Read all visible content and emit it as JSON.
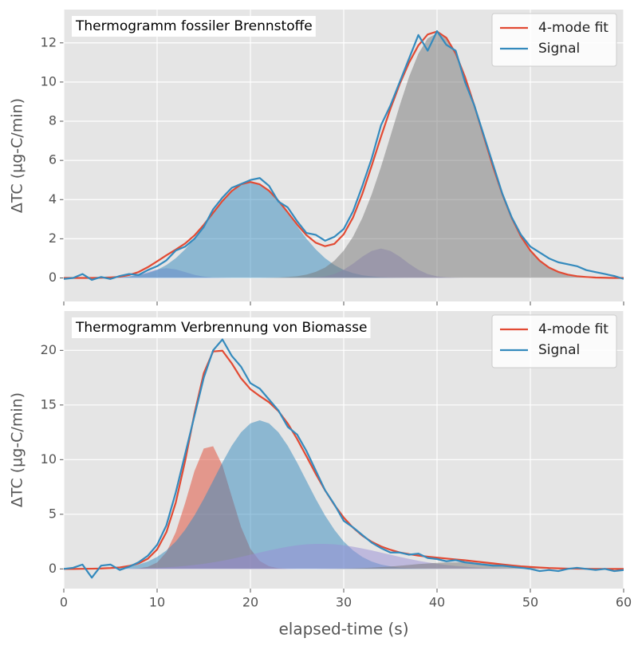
{
  "chart_data": [
    {
      "type": "line",
      "title": "Thermogramm fossiler Brennstoffe",
      "ylabel": "ΔTC (µg-C/min)",
      "xlim": [
        0,
        60
      ],
      "xticks": [
        0,
        10,
        20,
        30,
        40,
        50,
        60
      ],
      "xtick_labels": false,
      "ylim": [
        -1.2,
        13.7
      ],
      "yticks": [
        0,
        2,
        4,
        6,
        8,
        10,
        12
      ],
      "grid": true,
      "legend": "upper right",
      "x": [
        0,
        1,
        2,
        3,
        4,
        5,
        6,
        7,
        8,
        9,
        10,
        11,
        12,
        13,
        14,
        15,
        16,
        17,
        18,
        19,
        20,
        21,
        22,
        23,
        24,
        25,
        26,
        27,
        28,
        29,
        30,
        31,
        32,
        33,
        34,
        35,
        36,
        37,
        38,
        39,
        40,
        41,
        42,
        43,
        44,
        45,
        46,
        47,
        48,
        49,
        50,
        51,
        52,
        53,
        54,
        55,
        56,
        57,
        58,
        59,
        60
      ],
      "areas": [
        {
          "color": "#988ED5",
          "opacity": 0.5,
          "values": [
            0,
            0,
            0,
            0,
            0,
            0.01,
            0.02,
            0.07,
            0.16,
            0.3,
            0.44,
            0.5,
            0.44,
            0.3,
            0.16,
            0.07,
            0.02,
            0.01,
            0,
            0,
            0,
            0,
            0,
            0,
            0,
            0,
            0,
            0,
            0,
            0,
            0,
            0,
            0,
            0,
            0,
            0,
            0,
            0,
            0,
            0,
            0,
            0,
            0,
            0,
            0,
            0,
            0,
            0,
            0,
            0,
            0,
            0,
            0,
            0,
            0,
            0,
            0,
            0,
            0,
            0,
            0
          ]
        },
        {
          "color": "#348ABD",
          "opacity": 0.5,
          "values": [
            0,
            0,
            0,
            0,
            0.01,
            0.02,
            0.04,
            0.08,
            0.14,
            0.25,
            0.41,
            0.66,
            1.01,
            1.46,
            2.01,
            2.64,
            3.3,
            3.92,
            4.44,
            4.78,
            4.9,
            4.78,
            4.44,
            3.92,
            3.3,
            2.64,
            2.01,
            1.46,
            1.01,
            0.66,
            0.41,
            0.25,
            0.14,
            0.08,
            0.04,
            0.02,
            0.01,
            0,
            0,
            0,
            0,
            0,
            0,
            0,
            0,
            0,
            0,
            0,
            0,
            0,
            0,
            0,
            0,
            0,
            0,
            0,
            0,
            0,
            0,
            0,
            0
          ]
        },
        {
          "color": "#988ED5",
          "opacity": 0.5,
          "values": [
            0,
            0,
            0,
            0,
            0,
            0,
            0,
            0,
            0,
            0,
            0,
            0,
            0,
            0,
            0,
            0,
            0,
            0,
            0,
            0,
            0,
            0,
            0,
            0,
            0,
            0,
            0.01,
            0.03,
            0.08,
            0.2,
            0.42,
            0.73,
            1.09,
            1.38,
            1.5,
            1.38,
            1.09,
            0.73,
            0.42,
            0.2,
            0.08,
            0.03,
            0.01,
            0,
            0,
            0,
            0,
            0,
            0,
            0,
            0,
            0,
            0,
            0,
            0,
            0,
            0,
            0,
            0,
            0,
            0
          ]
        },
        {
          "color": "#777777",
          "opacity": 0.5,
          "values": [
            0,
            0,
            0,
            0,
            0,
            0,
            0,
            0,
            0,
            0,
            0,
            0,
            0,
            0,
            0,
            0,
            0,
            0,
            0,
            0,
            0,
            0,
            0.01,
            0.02,
            0.05,
            0.09,
            0.17,
            0.31,
            0.53,
            0.88,
            1.4,
            2.11,
            3.07,
            4.27,
            5.68,
            7.23,
            8.8,
            10.26,
            11.45,
            12.23,
            12.5,
            12.23,
            11.45,
            10.26,
            8.8,
            7.23,
            5.68,
            4.27,
            3.07,
            2.11,
            1.4,
            0.88,
            0.53,
            0.31,
            0.17,
            0.09,
            0.05,
            0.02,
            0.01,
            0,
            0
          ]
        }
      ],
      "series": [
        {
          "name": "4-mode fit",
          "color": "#E24A33",
          "values": [
            0,
            0,
            0,
            0,
            0.01,
            0.03,
            0.06,
            0.15,
            0.3,
            0.55,
            0.85,
            1.16,
            1.45,
            1.76,
            2.17,
            2.71,
            3.32,
            3.93,
            4.44,
            4.78,
            4.9,
            4.78,
            4.45,
            3.94,
            3.35,
            2.73,
            2.19,
            1.8,
            1.62,
            1.74,
            2.23,
            3.09,
            4.3,
            5.73,
            7.22,
            8.63,
            9.9,
            10.99,
            11.87,
            12.43,
            12.58,
            12.26,
            11.46,
            10.26,
            8.8,
            7.23,
            5.68,
            4.27,
            3.07,
            2.11,
            1.4,
            0.88,
            0.53,
            0.31,
            0.17,
            0.09,
            0.05,
            0.02,
            0.01,
            0,
            0
          ]
        },
        {
          "name": "Signal",
          "color": "#348ABD",
          "values": [
            -0.05,
            0,
            0.2,
            -0.1,
            0.05,
            -0.05,
            0.1,
            0.2,
            0.15,
            0.4,
            0.6,
            0.9,
            1.4,
            1.6,
            2,
            2.6,
            3.5,
            4.1,
            4.6,
            4.8,
            5,
            5.1,
            4.7,
            3.9,
            3.6,
            2.9,
            2.3,
            2.2,
            1.9,
            2.1,
            2.5,
            3.4,
            4.7,
            6.1,
            7.8,
            8.8,
            10,
            11.2,
            12.4,
            11.6,
            12.6,
            11.9,
            11.6,
            10,
            8.8,
            7.3,
            5.8,
            4.3,
            3.1,
            2.2,
            1.6,
            1.3,
            1,
            0.8,
            0.7,
            0.6,
            0.4,
            0.3,
            0.2,
            0.1,
            -0.05
          ]
        }
      ]
    },
    {
      "type": "line",
      "title": "Thermogramm Verbrennung von Biomasse",
      "ylabel": "ΔTC (µg-C/min)",
      "xlabel": "elapsed-time (s)",
      "xlim": [
        0,
        60
      ],
      "xticks": [
        0,
        10,
        20,
        30,
        40,
        50,
        60
      ],
      "ylim": [
        -1.8,
        23.6
      ],
      "yticks": [
        0,
        5,
        10,
        15,
        20
      ],
      "grid": true,
      "legend": "upper right",
      "x": [
        0,
        1,
        2,
        3,
        4,
        5,
        6,
        7,
        8,
        9,
        10,
        11,
        12,
        13,
        14,
        15,
        16,
        17,
        18,
        19,
        20,
        21,
        22,
        23,
        24,
        25,
        26,
        27,
        28,
        29,
        30,
        31,
        32,
        33,
        34,
        35,
        36,
        37,
        38,
        39,
        40,
        41,
        42,
        43,
        44,
        45,
        46,
        47,
        48,
        49,
        50,
        51,
        52,
        53,
        54,
        55,
        56,
        57,
        58,
        59,
        60
      ],
      "areas": [
        {
          "color": "#E24A33",
          "opacity": 0.5,
          "values": [
            0,
            0,
            0,
            0,
            0,
            0,
            0,
            0.01,
            0.05,
            0.19,
            0.59,
            1.54,
            3.36,
            6.02,
            8.95,
            11.02,
            11.23,
            9.48,
            6.62,
            3.83,
            1.83,
            0.73,
            0.24,
            0.06,
            0.01,
            0,
            0,
            0,
            0,
            0,
            0,
            0,
            0,
            0,
            0,
            0,
            0,
            0,
            0,
            0,
            0,
            0,
            0,
            0,
            0,
            0,
            0,
            0,
            0,
            0,
            0,
            0,
            0,
            0,
            0,
            0,
            0,
            0,
            0,
            0,
            0
          ]
        },
        {
          "color": "#348ABD",
          "opacity": 0.5,
          "values": [
            0,
            0,
            0.01,
            0.02,
            0.03,
            0.07,
            0.12,
            0.23,
            0.4,
            0.67,
            1.09,
            1.69,
            2.51,
            3.58,
            4.89,
            6.41,
            8.07,
            9.74,
            11.27,
            12.51,
            13.32,
            13.6,
            13.32,
            12.51,
            11.27,
            9.74,
            8.07,
            6.41,
            4.89,
            3.58,
            2.51,
            1.69,
            1.09,
            0.67,
            0.4,
            0.23,
            0.12,
            0.07,
            0.03,
            0.02,
            0.01,
            0,
            0,
            0,
            0,
            0,
            0,
            0,
            0,
            0,
            0,
            0,
            0,
            0,
            0,
            0,
            0,
            0,
            0,
            0,
            0
          ]
        },
        {
          "color": "#988ED5",
          "opacity": 0.5,
          "values": [
            0,
            0,
            0,
            0,
            0.01,
            0.01,
            0.02,
            0.03,
            0.05,
            0.07,
            0.1,
            0.14,
            0.2,
            0.27,
            0.36,
            0.47,
            0.6,
            0.75,
            0.92,
            1.1,
            1.3,
            1.49,
            1.69,
            1.87,
            2.03,
            2.16,
            2.25,
            2.29,
            2.29,
            2.25,
            2.16,
            2.03,
            1.87,
            1.69,
            1.49,
            1.3,
            1.1,
            0.92,
            0.75,
            0.6,
            0.47,
            0.36,
            0.27,
            0.2,
            0.14,
            0.1,
            0.07,
            0.05,
            0.03,
            0.02,
            0.01,
            0.01,
            0,
            0,
            0,
            0,
            0,
            0,
            0,
            0,
            0
          ]
        },
        {
          "color": "#777777",
          "opacity": 0.5,
          "values": [
            0,
            0,
            0,
            0,
            0,
            0,
            0,
            0,
            0,
            0,
            0,
            0,
            0,
            0,
            0,
            0,
            0,
            0,
            0,
            0,
            0,
            0,
            0,
            0,
            0,
            0,
            0,
            0,
            0.01,
            0.02,
            0.03,
            0.05,
            0.08,
            0.12,
            0.17,
            0.22,
            0.29,
            0.36,
            0.44,
            0.5,
            0.55,
            0.59,
            0.6,
            0.59,
            0.55,
            0.5,
            0.44,
            0.36,
            0.29,
            0.22,
            0.17,
            0.12,
            0.08,
            0.05,
            0.03,
            0.02,
            0.01,
            0,
            0,
            0,
            0
          ]
        }
      ],
      "series": [
        {
          "name": "4-mode fit",
          "color": "#E24A33",
          "values": [
            0,
            0,
            0.01,
            0.02,
            0.04,
            0.08,
            0.14,
            0.27,
            0.5,
            0.93,
            1.78,
            3.37,
            6.07,
            9.87,
            14.2,
            17.9,
            19.9,
            19.97,
            18.81,
            17.44,
            16.45,
            15.82,
            15.25,
            14.44,
            13.31,
            11.9,
            10.32,
            8.7,
            7.19,
            5.85,
            4.7,
            3.77,
            3.04,
            2.48,
            2.06,
            1.75,
            1.51,
            1.35,
            1.22,
            1.12,
            1.03,
            0.95,
            0.87,
            0.79,
            0.69,
            0.6,
            0.51,
            0.41,
            0.32,
            0.24,
            0.18,
            0.13,
            0.08,
            0.05,
            0.03,
            0.02,
            0.01,
            0,
            0,
            0,
            0
          ]
        },
        {
          "name": "Signal",
          "color": "#348ABD",
          "values": [
            0,
            0.1,
            0.4,
            -0.8,
            0.3,
            0.4,
            -0.1,
            0.2,
            0.6,
            1.2,
            2.2,
            4,
            7,
            10.5,
            14,
            17.5,
            20,
            21,
            19.5,
            18.5,
            17,
            16.5,
            15.5,
            14.5,
            13,
            12.3,
            10.8,
            9,
            7.2,
            5.9,
            4.4,
            3.8,
            3.1,
            2.4,
            1.9,
            1.5,
            1.5,
            1.3,
            1.4,
            1,
            0.9,
            0.7,
            0.8,
            0.6,
            0.5,
            0.4,
            0.3,
            0.3,
            0.2,
            0.1,
            0,
            -0.2,
            -0.1,
            -0.2,
            0,
            0.1,
            0,
            -0.1,
            0,
            -0.2,
            -0.1
          ]
        }
      ]
    }
  ]
}
